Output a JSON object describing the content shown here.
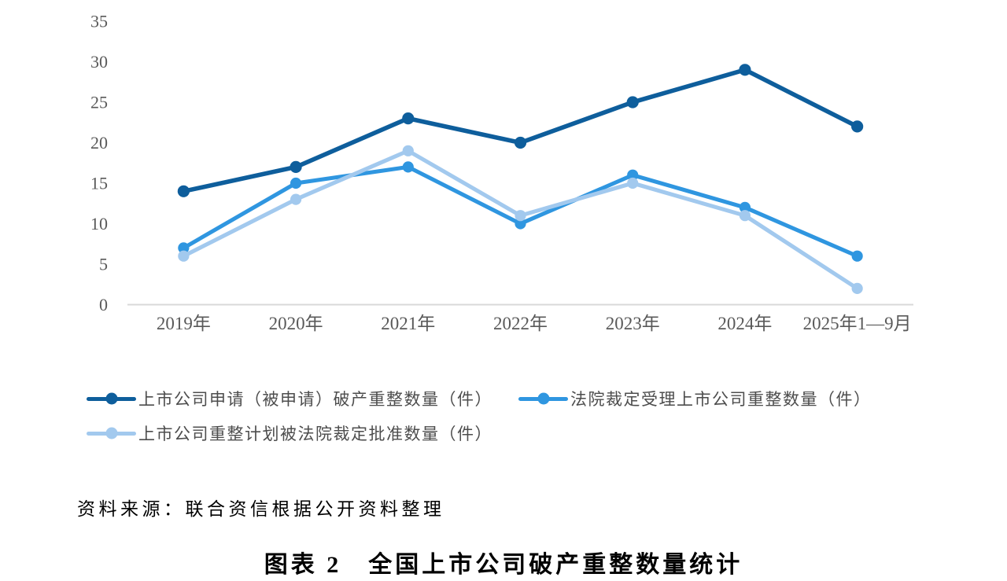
{
  "chart_data": {
    "type": "line",
    "categories": [
      "2019年",
      "2020年",
      "2021年",
      "2022年",
      "2023年",
      "2024年",
      "2025年1—9月"
    ],
    "series": [
      {
        "name": "上市公司申请（被申请）破产重整数量（件）",
        "values": [
          14,
          17,
          23,
          20,
          25,
          29,
          22
        ],
        "color": "#0E5E9C"
      },
      {
        "name": "法院裁定受理上市公司重整数量（件）",
        "values": [
          7,
          15,
          17,
          10,
          16,
          12,
          6
        ],
        "color": "#2F96E0"
      },
      {
        "name": "上市公司重整计划被法院裁定批准数量（件）",
        "values": [
          6,
          13,
          19,
          11,
          15,
          11,
          2
        ],
        "color": "#A2C9EE"
      }
    ],
    "title": "",
    "xlabel": "",
    "ylabel": "",
    "ylim": [
      0,
      35
    ],
    "yticks": [
      0,
      5,
      10,
      15,
      20,
      25,
      30,
      35
    ],
    "grid": false,
    "legend_position": "bottom",
    "axis_line_color": "#D9D9D9",
    "tick_label_color": "#595959"
  },
  "source_note": "资料来源：联合资信根据公开资料整理",
  "caption": "图表 2　全国上市公司破产重整数量统计"
}
